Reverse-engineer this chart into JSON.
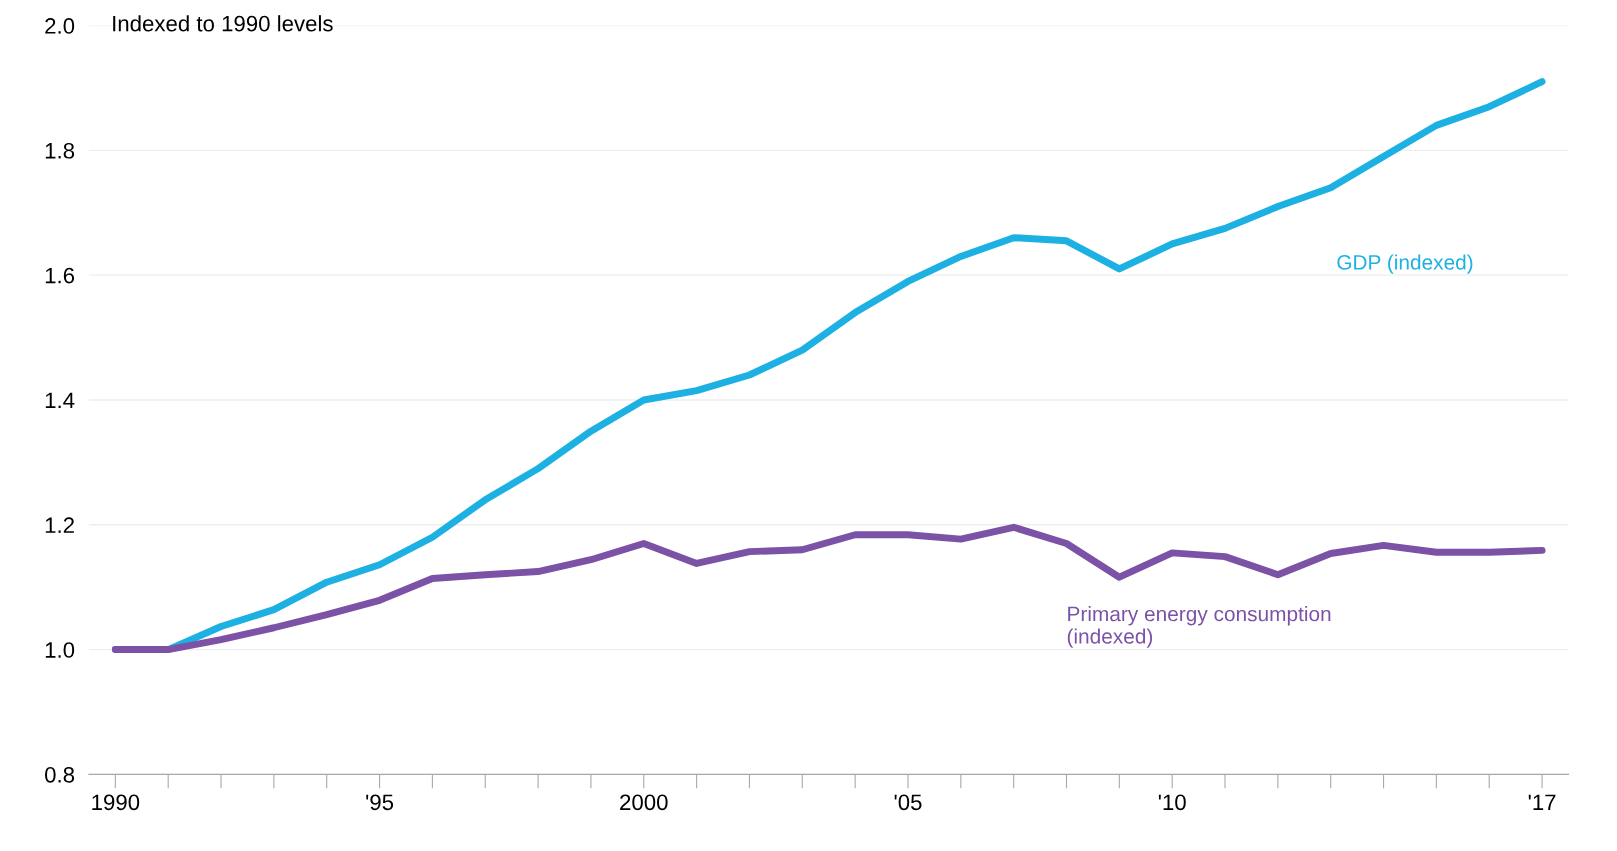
{
  "chart_data": {
    "type": "line",
    "ylabel": "Indexed to 1990 levels",
    "x": [
      1990,
      1991,
      1992,
      1993,
      1994,
      1995,
      1996,
      1997,
      1998,
      1999,
      2000,
      2001,
      2002,
      2003,
      2004,
      2005,
      2006,
      2007,
      2008,
      2009,
      2010,
      2011,
      2012,
      2013,
      2014,
      2015,
      2016,
      2017
    ],
    "series": [
      {
        "name": "GDP (indexed)",
        "color": "#1cb1e2",
        "values": [
          1.0,
          1.0,
          1.037,
          1.064,
          1.108,
          1.136,
          1.18,
          1.24,
          1.29,
          1.35,
          1.4,
          1.415,
          1.44,
          1.48,
          1.54,
          1.59,
          1.63,
          1.66,
          1.655,
          1.61,
          1.65,
          1.675,
          1.71,
          1.74,
          1.79,
          1.84,
          1.87,
          1.91
        ]
      },
      {
        "name": "Primary energy consumption\n(indexed)",
        "color": "#7b52a5",
        "values": [
          1.0,
          1.0,
          1.016,
          1.035,
          1.056,
          1.079,
          1.114,
          1.12,
          1.125,
          1.144,
          1.17,
          1.138,
          1.157,
          1.16,
          1.184,
          1.184,
          1.177,
          1.196,
          1.17,
          1.116,
          1.155,
          1.149,
          1.12,
          1.154,
          1.167,
          1.156,
          1.156,
          1.159
        ]
      }
    ],
    "xlim": [
      1989.5,
      2017.5
    ],
    "xticks": [
      1990,
      {
        "value": 1991,
        "label": null
      },
      {
        "value": 1992,
        "label": null
      },
      {
        "value": 1993,
        "label": null
      },
      {
        "value": 1994,
        "label": null
      },
      {
        "value": 1995,
        "label": "'95"
      },
      {
        "value": 1996,
        "label": null
      },
      {
        "value": 1997,
        "label": null
      },
      {
        "value": 1998,
        "label": null
      },
      {
        "value": 1999,
        "label": null
      },
      2000,
      {
        "value": 2001,
        "label": null
      },
      {
        "value": 2002,
        "label": null
      },
      {
        "value": 2003,
        "label": null
      },
      {
        "value": 2004,
        "label": null
      },
      {
        "value": 2005,
        "label": "'05"
      },
      {
        "value": 2006,
        "label": null
      },
      {
        "value": 2007,
        "label": null
      },
      {
        "value": 2008,
        "label": null
      },
      {
        "value": 2009,
        "label": null
      },
      {
        "value": 2010,
        "label": "'10"
      },
      {
        "value": 2011,
        "label": null
      },
      {
        "value": 2012,
        "label": null
      },
      {
        "value": 2013,
        "label": null
      },
      {
        "value": 2014,
        "label": null
      },
      {
        "value": 2015,
        "label": null
      },
      {
        "value": 2016,
        "label": null
      },
      {
        "value": 2017,
        "label": "'17"
      }
    ],
    "ylim": [
      0.8,
      2.0
    ],
    "yticks": [
      0.8,
      {
        "value": 1,
        "label": "1.0"
      },
      1.2,
      1.4,
      1.6,
      1.8,
      {
        "value": 2,
        "label": "2.0"
      }
    ],
    "grid": "y",
    "legend": false,
    "marker": "none",
    "line_style": "solid"
  }
}
